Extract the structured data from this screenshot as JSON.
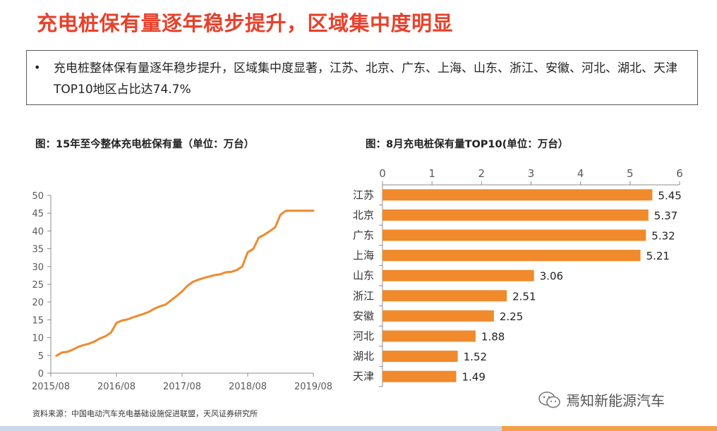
{
  "page_title": "充电桩保有量逐年稳步提升，区域集中度明显",
  "summary": {
    "bullet": "•",
    "text": "充电桩整体保有量逐年稳步提升，区域集中度显著，江苏、北京、广东、上海、山东、浙江、安徽、河北、湖北、天津TOP10地区占比达74.7%"
  },
  "source": "资料来源：中国电动汽车充电基础设施促进联盟，天风证券研究所",
  "watermark": "焉知新能源汽车",
  "colors": {
    "title": "#e8412b",
    "series": "#f08a2c",
    "axis": "#8c8c8c"
  },
  "chart_data": [
    {
      "type": "line",
      "title": "图：15年至今整体充电桩保有量（单位：万台）",
      "xlabel": "",
      "ylabel": "",
      "x_ticks": [
        "2015/08",
        "2016/08",
        "2017/08",
        "2018/08",
        "2019/08"
      ],
      "ylim": [
        0,
        50
      ],
      "y_ticks": [
        0,
        5,
        10,
        15,
        20,
        25,
        30,
        35,
        40,
        45,
        50
      ],
      "series": [
        {
          "x": [
            "2015/09",
            "2015/10",
            "2015/11",
            "2015/12",
            "2016/01",
            "2016/02",
            "2016/03",
            "2016/04",
            "2016/05",
            "2016/06",
            "2016/07",
            "2016/08",
            "2016/09",
            "2016/10",
            "2016/11",
            "2016/12",
            "2017/01",
            "2017/02",
            "2017/03",
            "2017/04",
            "2017/05",
            "2017/06",
            "2017/07",
            "2017/08",
            "2017/09",
            "2017/10",
            "2017/11",
            "2017/12",
            "2018/01",
            "2018/02",
            "2018/03",
            "2018/04",
            "2018/05",
            "2018/06",
            "2018/07",
            "2018/08",
            "2018/09",
            "2018/10",
            "2018/11",
            "2018/12",
            "2019/01",
            "2019/02",
            "2019/03",
            "2019/04",
            "2019/05",
            "2019/06",
            "2019/07",
            "2019/08"
          ],
          "values": [
            4.9,
            5.8,
            6.0,
            6.6,
            7.4,
            7.9,
            8.3,
            8.9,
            9.8,
            10.4,
            11.4,
            14.1,
            14.8,
            15.1,
            15.7,
            16.2,
            16.7,
            17.3,
            18.2,
            18.8,
            19.3,
            20.5,
            21.7,
            23.0,
            24.6,
            25.7,
            26.3,
            26.8,
            27.2,
            27.6,
            27.8,
            28.4,
            28.5,
            29.0,
            30.0,
            34.0,
            34.9,
            38.1,
            38.9,
            39.9,
            41.0,
            44.6,
            45.7,
            45.7,
            45.7,
            45.7,
            45.7,
            45.7
          ]
        }
      ]
    },
    {
      "type": "bar",
      "orientation": "horizontal",
      "title": "图：8月充电桩保有量TOP10(单位：万台）",
      "xlim": [
        0,
        6
      ],
      "x_ticks": [
        0,
        1,
        2,
        3,
        4,
        5,
        6
      ],
      "categories": [
        "江苏",
        "北京",
        "广东",
        "上海",
        "山东",
        "浙江",
        "安徽",
        "河北",
        "湖北",
        "天津"
      ],
      "values": [
        5.45,
        5.37,
        5.32,
        5.21,
        3.06,
        2.51,
        2.25,
        1.88,
        1.52,
        1.49
      ],
      "value_labels": [
        "5.45",
        "5.37",
        "5.32",
        "5.21",
        "3.06",
        "2.51",
        "2.25",
        "1.88",
        "1.52",
        "1.49"
      ]
    }
  ]
}
